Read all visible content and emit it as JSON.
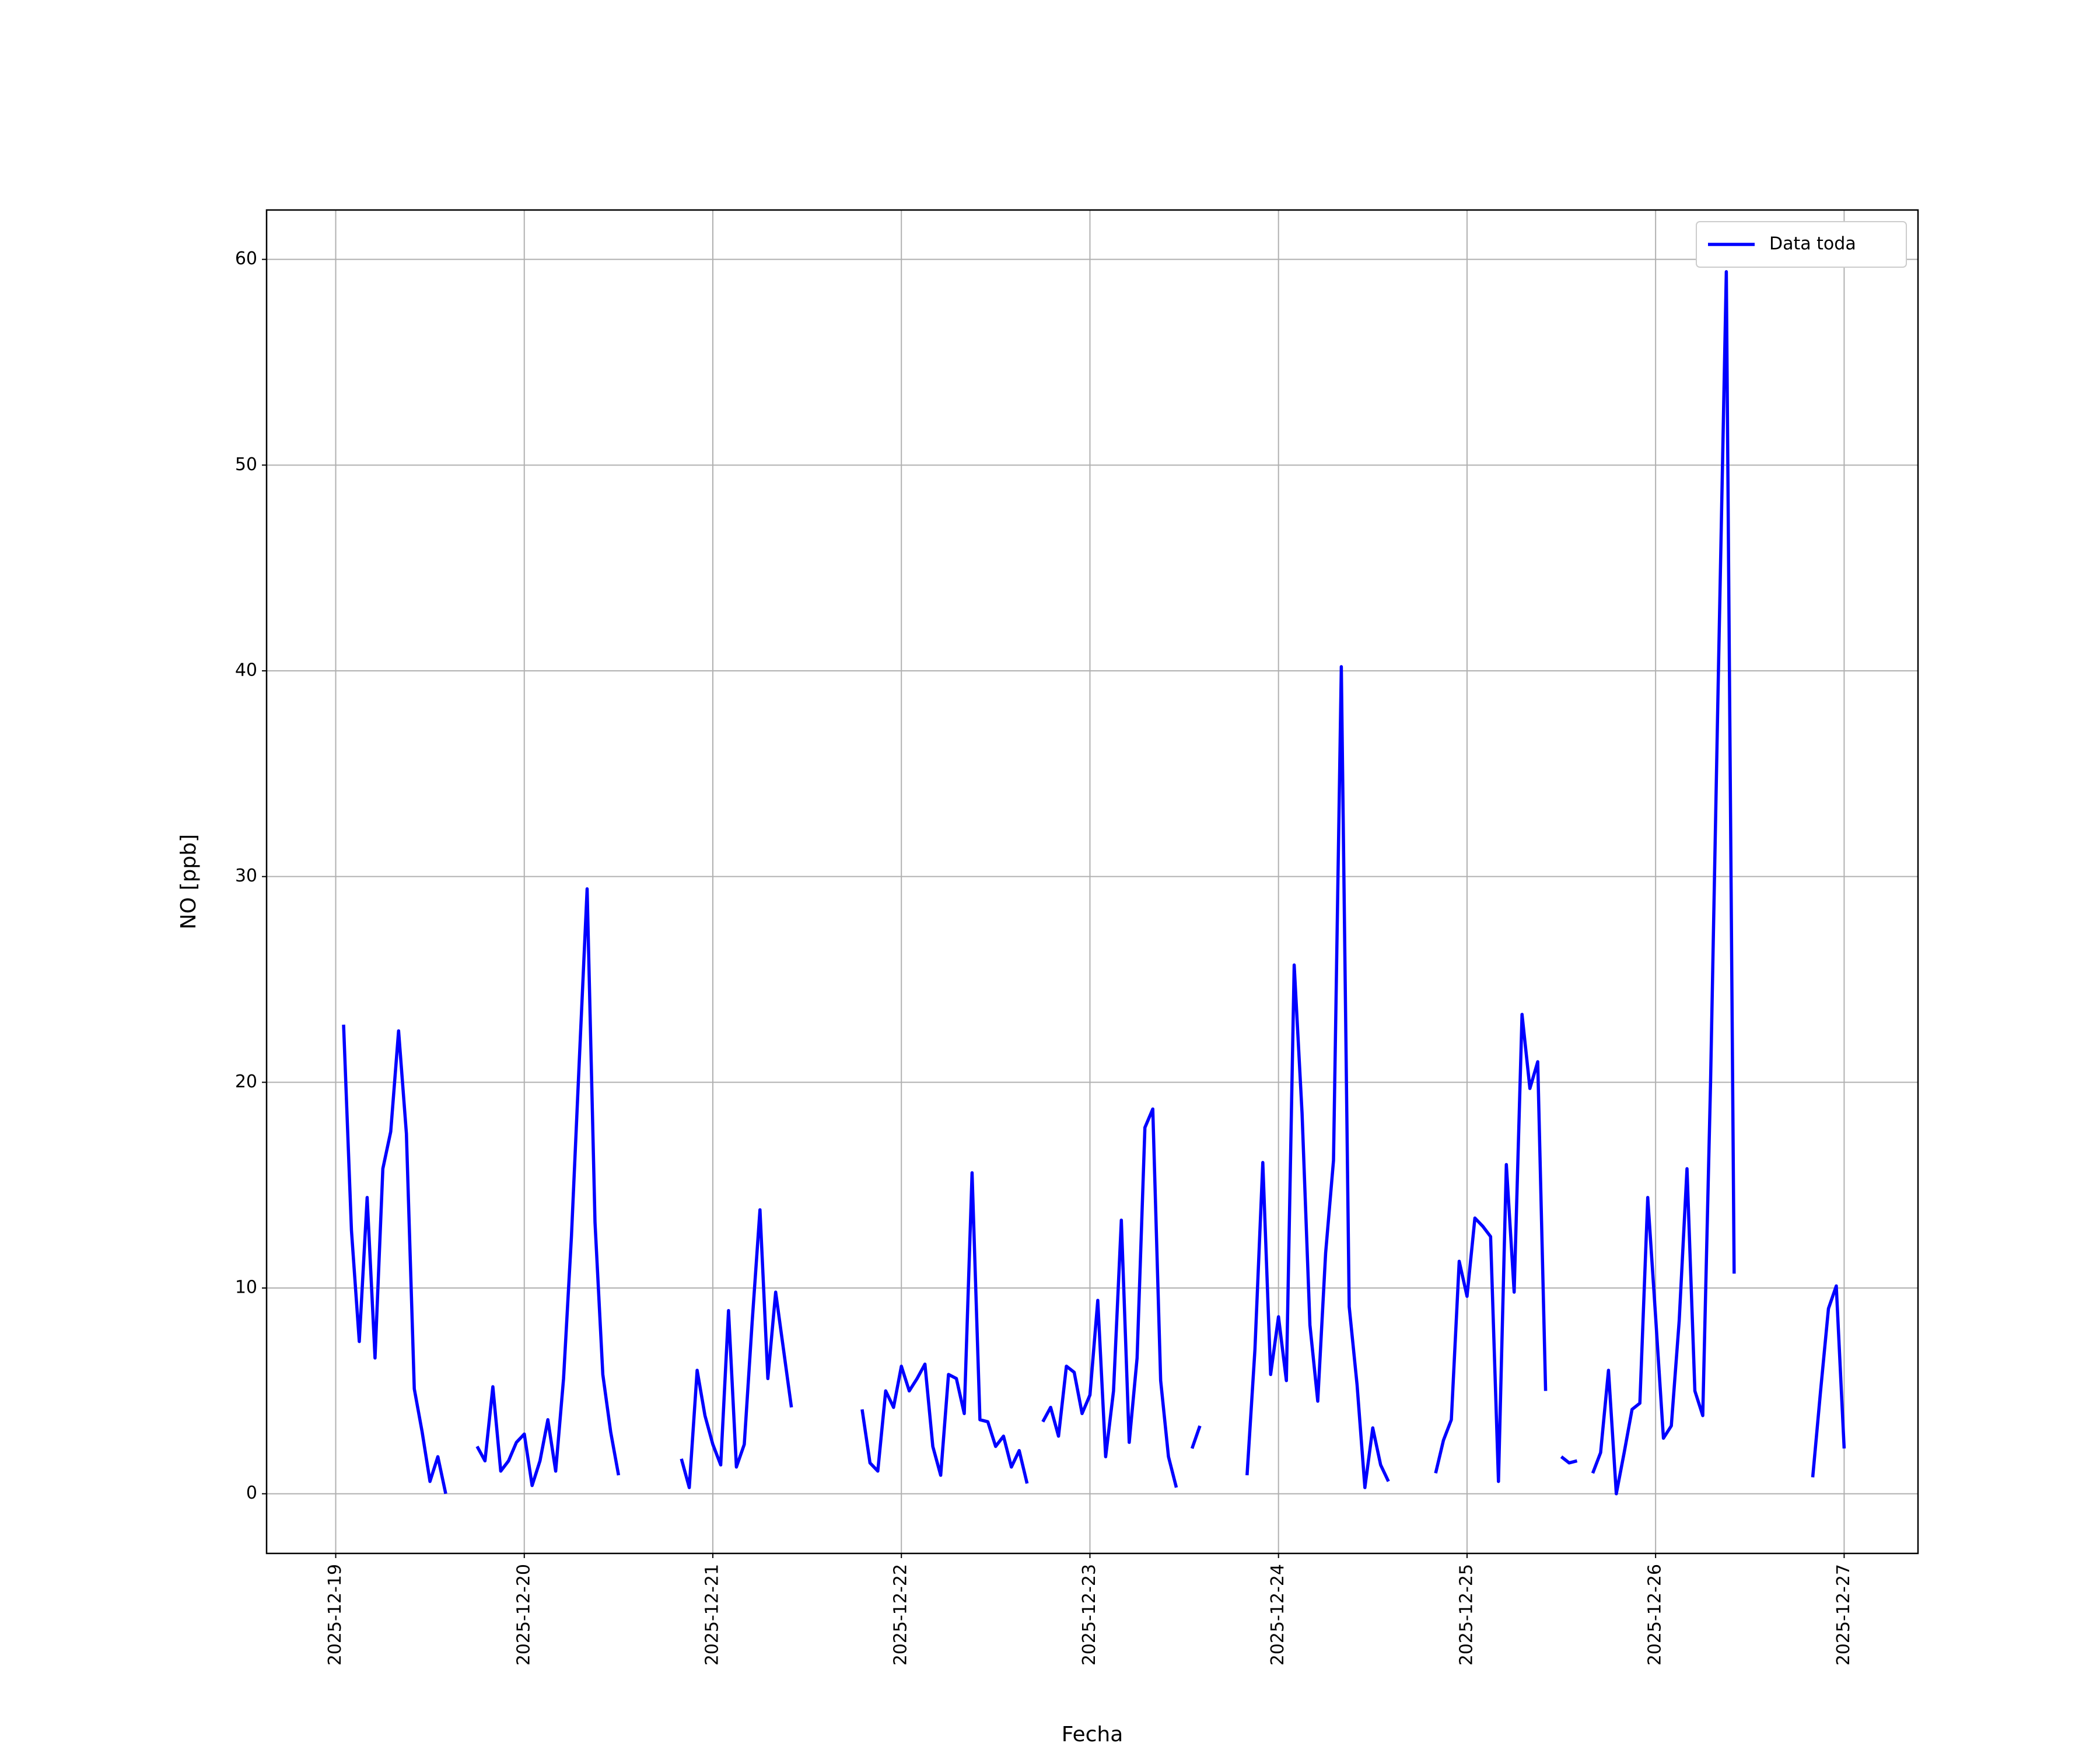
{
  "chart_data": {
    "type": "line",
    "xlabel": "Fecha",
    "ylabel": "NO [ppb]",
    "x": [
      1,
      2,
      3,
      4,
      5,
      6,
      7,
      8,
      9,
      10,
      11,
      12,
      13,
      14,
      16,
      18,
      19,
      20,
      21,
      22,
      23,
      24,
      25,
      26,
      27,
      28,
      29,
      30,
      31,
      32,
      33,
      34,
      35,
      36,
      40,
      44,
      45,
      46,
      47,
      48,
      49,
      50,
      51,
      52,
      53,
      54,
      55,
      56,
      57,
      58,
      62,
      67,
      68,
      69,
      70,
      71,
      72,
      73,
      74,
      75,
      76,
      77,
      78,
      79,
      80,
      81,
      82,
      83,
      84,
      85,
      86,
      87,
      88,
      89,
      90,
      91,
      92,
      93,
      94,
      95,
      96,
      97,
      98,
      99,
      100,
      101,
      102,
      103,
      104,
      105,
      106,
      107,
      108,
      109,
      110,
      113,
      116,
      117,
      118,
      119,
      120,
      121,
      122,
      123,
      124,
      125,
      126,
      127,
      128,
      129,
      130,
      131,
      132,
      133,
      134,
      137,
      140,
      141,
      142,
      143,
      144,
      145,
      146,
      147,
      148,
      149,
      150,
      151,
      152,
      153,
      154,
      155,
      156,
      157,
      158,
      159,
      160,
      161,
      162,
      163,
      164,
      165,
      166,
      167,
      168,
      169,
      170,
      171,
      172,
      173,
      174,
      175,
      176,
      177,
      178,
      183,
      188,
      189,
      190,
      191,
      192
    ],
    "series": [
      {
        "name": "Data toda",
        "color": "#0000ff",
        "values": [
          22.8,
          12.8,
          7.4,
          14.4,
          6.6,
          15.8,
          17.6,
          22.5,
          17.5,
          5.1,
          3.0,
          0.6,
          1.8,
          0.0,
          null,
          2.3,
          1.6,
          5.2,
          1.1,
          1.6,
          2.5,
          2.9,
          0.4,
          1.6,
          3.6,
          1.1,
          5.6,
          12.5,
          21.0,
          29.4,
          13.2,
          5.8,
          3.0,
          0.9,
          null,
          1.7,
          0.3,
          6.0,
          3.8,
          2.4,
          1.4,
          8.9,
          1.3,
          2.4,
          8.3,
          13.8,
          5.6,
          9.8,
          7.0,
          4.2,
          null,
          4.1,
          1.5,
          1.1,
          5.0,
          4.2,
          6.2,
          5.0,
          5.6,
          6.3,
          2.3,
          0.9,
          5.8,
          5.6,
          3.9,
          15.6,
          3.6,
          3.5,
          2.3,
          2.8,
          1.3,
          2.1,
          0.5,
          null,
          3.5,
          4.2,
          2.8,
          6.2,
          5.9,
          3.9,
          4.8,
          9.4,
          1.8,
          5.0,
          13.3,
          2.5,
          6.6,
          17.8,
          18.7,
          5.5,
          1.8,
          0.3,
          null,
          2.2,
          3.3,
          null,
          0.9,
          7.0,
          16.1,
          5.8,
          8.6,
          5.5,
          25.7,
          18.5,
          8.2,
          4.5,
          11.7,
          16.2,
          40.2,
          9.1,
          5.3,
          0.3,
          3.2,
          1.4,
          0.6,
          null,
          1.0,
          2.6,
          3.6,
          11.3,
          9.6,
          13.4,
          13.0,
          12.5,
          0.6,
          16.0,
          9.8,
          23.3,
          19.7,
          21.0,
          5.0,
          null,
          1.8,
          1.5,
          1.6,
          null,
          1.0,
          2.0,
          6.0,
          0.0,
          2.0,
          4.1,
          4.4,
          14.4,
          8.6,
          2.7,
          3.3,
          8.4,
          15.8,
          5.0,
          3.8,
          20.0,
          40.0,
          59.4,
          10.7,
          null,
          0.8,
          5.0,
          9.0,
          10.1,
          2.2
        ]
      }
    ],
    "xlim": [
      -8.8,
      201.4
    ],
    "xticks": [
      {
        "value": 0,
        "label": "2025-12-19"
      },
      {
        "value": 24,
        "label": "2025-12-20"
      },
      {
        "value": 48,
        "label": "2025-12-21"
      },
      {
        "value": 72,
        "label": "2025-12-22"
      },
      {
        "value": 96,
        "label": "2025-12-23"
      },
      {
        "value": 120,
        "label": "2025-12-24"
      },
      {
        "value": 144,
        "label": "2025-12-25"
      },
      {
        "value": 168,
        "label": "2025-12-26"
      },
      {
        "value": 192,
        "label": "2025-12-27"
      }
    ],
    "ylim": [
      -2.9,
      62.4
    ],
    "yticks": [
      0,
      10,
      20,
      30,
      40,
      50,
      60
    ],
    "grid": true,
    "legend": "upper right"
  }
}
